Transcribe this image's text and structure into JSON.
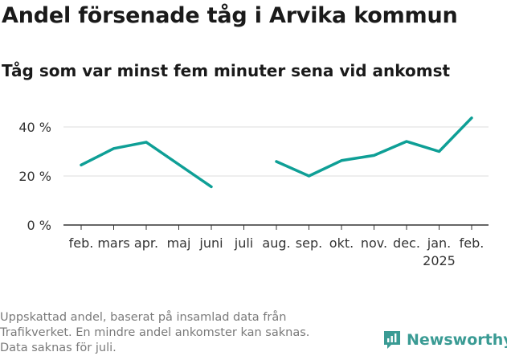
{
  "chart_data": {
    "type": "line",
    "title": "Andel försenade tåg i Arvika kommun",
    "subtitle": "Tåg som var minst fem minuter sena vid ankomst",
    "categories": [
      "feb.",
      "mars",
      "apr.",
      "maj",
      "juni",
      "juli",
      "aug.",
      "sep.",
      "okt.",
      "nov.",
      "dec.",
      "jan.",
      "feb."
    ],
    "year_label": {
      "category_index": 11,
      "text": "2025"
    },
    "series": [
      {
        "values": [
          24.5,
          31.2,
          33.8,
          null,
          15.6,
          null,
          25.9,
          20.0,
          26.3,
          28.4,
          34.1,
          30.0,
          43.7
        ],
        "color": "#0e9f96"
      }
    ],
    "gap_connected_segments": [
      [
        0,
        1,
        2,
        4
      ],
      [
        6,
        7,
        8,
        9,
        10,
        11,
        12
      ]
    ],
    "y_ticks": [
      0,
      20,
      40
    ],
    "y_tick_suffix": " %",
    "ylim": [
      0,
      46
    ],
    "grid": true,
    "legend": "none"
  },
  "footnote": [
    "Uppskattad andel, baserat på insamlad data från",
    "Trafikverket. En mindre andel ankomster kan saknas.",
    "Data saknas för juli."
  ],
  "brand": {
    "name": "Newsworthy",
    "icon": "newsworthy-logo-icon",
    "color": "#3a9b94"
  }
}
